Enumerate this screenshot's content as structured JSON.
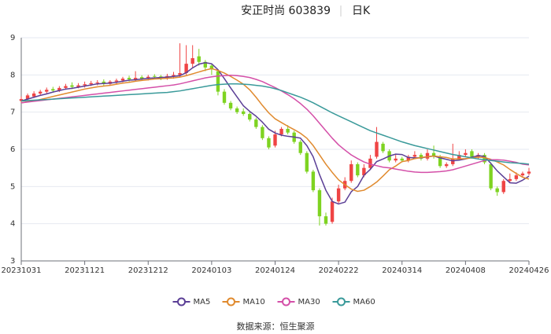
{
  "chart_data": {
    "type": "candlestick",
    "title": "安正时尚 603839",
    "period": "日K",
    "source": "数据来源：恒生聚源",
    "categories": [
      "20231031",
      null,
      null,
      null,
      null,
      null,
      null,
      null,
      null,
      null,
      "20231121",
      null,
      null,
      null,
      null,
      null,
      null,
      null,
      null,
      null,
      "20231212",
      null,
      null,
      null,
      null,
      null,
      null,
      null,
      null,
      null,
      "20240103",
      null,
      null,
      null,
      null,
      null,
      null,
      null,
      null,
      null,
      "20240124",
      null,
      null,
      null,
      null,
      null,
      null,
      null,
      null,
      null,
      "20240222",
      null,
      null,
      null,
      null,
      null,
      null,
      null,
      null,
      null,
      "20240314",
      null,
      null,
      null,
      null,
      null,
      null,
      null,
      null,
      null,
      "20240408",
      null,
      null,
      null,
      null,
      null,
      null,
      null,
      null,
      null,
      "20240426"
    ],
    "open": [
      7.3,
      7.35,
      7.42,
      7.5,
      7.55,
      7.62,
      7.58,
      7.65,
      7.72,
      7.68,
      7.72,
      7.75,
      7.78,
      7.82,
      7.76,
      7.82,
      7.85,
      7.92,
      7.88,
      7.94,
      7.9,
      7.97,
      7.96,
      7.92,
      7.97,
      8.0,
      8.05,
      8.3,
      8.5,
      8.35,
      8.25,
      8.1,
      7.55,
      7.25,
      7.1,
      7.02,
      6.95,
      6.8,
      6.6,
      6.3,
      6.1,
      6.4,
      6.55,
      6.45,
      6.2,
      5.9,
      5.4,
      4.9,
      4.2,
      4.05,
      4.6,
      4.95,
      5.15,
      5.6,
      5.3,
      5.5,
      5.8,
      6.15,
      5.95,
      5.7,
      5.75,
      5.7,
      5.8,
      5.85,
      5.75,
      5.9,
      5.8,
      5.55,
      5.6,
      5.75,
      5.85,
      5.95,
      5.8,
      5.85,
      5.6,
      4.95,
      4.85,
      5.15,
      5.2,
      5.3,
      5.35
    ],
    "high": [
      7.42,
      7.5,
      7.56,
      7.6,
      7.66,
      7.68,
      7.7,
      7.76,
      7.8,
      7.78,
      7.82,
      7.84,
      7.86,
      7.88,
      7.86,
      7.9,
      7.95,
      7.98,
      8.1,
      7.99,
      8.0,
      8.02,
      8.0,
      8.03,
      8.08,
      8.85,
      8.8,
      8.8,
      8.7,
      8.4,
      8.3,
      8.15,
      7.62,
      7.3,
      7.15,
      7.1,
      7.0,
      6.85,
      6.65,
      6.35,
      6.5,
      6.6,
      6.65,
      6.5,
      6.25,
      5.95,
      5.45,
      4.95,
      4.3,
      4.7,
      5.05,
      5.25,
      5.7,
      5.65,
      5.6,
      5.85,
      6.6,
      6.2,
      6.0,
      5.85,
      5.8,
      5.85,
      5.95,
      5.9,
      6.0,
      6.1,
      5.85,
      5.65,
      6.15,
      5.95,
      6.0,
      6.0,
      5.9,
      5.9,
      5.65,
      5.0,
      5.2,
      5.35,
      5.38,
      5.4,
      5.5
    ],
    "low": [
      7.25,
      7.3,
      7.38,
      7.45,
      7.5,
      7.52,
      7.54,
      7.6,
      7.62,
      7.64,
      7.66,
      7.7,
      7.72,
      7.7,
      7.72,
      7.76,
      7.8,
      7.82,
      7.82,
      7.84,
      7.85,
      7.88,
      7.86,
      7.87,
      7.9,
      7.95,
      8.0,
      8.2,
      8.25,
      8.1,
      8.0,
      7.45,
      7.2,
      7.05,
      6.95,
      6.9,
      6.75,
      6.55,
      6.25,
      6.0,
      6.05,
      6.35,
      6.4,
      6.15,
      5.85,
      5.35,
      4.85,
      3.95,
      3.95,
      4.0,
      4.55,
      4.9,
      5.1,
      5.25,
      5.25,
      5.45,
      5.75,
      5.9,
      5.65,
      5.65,
      5.65,
      5.65,
      5.75,
      5.7,
      5.7,
      5.75,
      5.5,
      5.5,
      5.55,
      5.7,
      5.8,
      5.75,
      5.75,
      5.6,
      4.9,
      4.75,
      4.8,
      5.1,
      5.15,
      5.25,
      5.3
    ],
    "close": [
      7.35,
      7.45,
      7.5,
      7.55,
      7.6,
      7.58,
      7.65,
      7.7,
      7.68,
      7.72,
      7.75,
      7.78,
      7.8,
      7.76,
      7.82,
      7.85,
      7.9,
      7.88,
      7.92,
      7.9,
      7.95,
      7.95,
      7.92,
      7.97,
      8.0,
      8.05,
      8.3,
      8.45,
      8.35,
      8.2,
      8.15,
      7.55,
      7.25,
      7.1,
      7.0,
      6.95,
      6.8,
      6.6,
      6.3,
      6.05,
      6.4,
      6.55,
      6.45,
      6.2,
      5.9,
      5.4,
      4.9,
      4.2,
      4.0,
      4.6,
      4.95,
      5.15,
      5.6,
      5.3,
      5.5,
      5.75,
      6.2,
      5.95,
      5.7,
      5.75,
      5.7,
      5.8,
      5.85,
      5.75,
      5.9,
      5.8,
      5.55,
      5.6,
      5.75,
      5.85,
      5.9,
      5.8,
      5.85,
      5.65,
      4.95,
      4.85,
      5.15,
      5.2,
      5.3,
      5.35,
      5.4
    ],
    "up_color": "#ef4444",
    "down_color": "#7ed321",
    "series": [
      {
        "name": "MA5",
        "color": "#5b3f96",
        "values": [
          7.3,
          7.35,
          7.4,
          7.45,
          7.49,
          7.54,
          7.58,
          7.62,
          7.64,
          7.67,
          7.7,
          7.73,
          7.76,
          7.77,
          7.78,
          7.8,
          7.83,
          7.86,
          7.87,
          7.89,
          7.91,
          7.92,
          7.93,
          7.94,
          7.96,
          7.98,
          8.06,
          8.19,
          8.29,
          8.33,
          8.3,
          8.14,
          7.9,
          7.65,
          7.41,
          7.17,
          7.02,
          6.89,
          6.73,
          6.54,
          6.44,
          6.38,
          6.35,
          6.33,
          6.3,
          6.1,
          5.8,
          5.32,
          4.9,
          4.6,
          4.53,
          4.58,
          4.86,
          5.0,
          5.3,
          5.46,
          5.67,
          5.74,
          5.82,
          5.87,
          5.86,
          5.78,
          5.77,
          5.77,
          5.8,
          5.82,
          5.77,
          5.73,
          5.69,
          5.71,
          5.74,
          5.79,
          5.83,
          5.81,
          5.62,
          5.42,
          5.26,
          5.1,
          5.09,
          5.17,
          5.28
        ]
      },
      {
        "name": "MA10",
        "color": "#e08a2e",
        "values": [
          7.25,
          7.28,
          7.3,
          7.34,
          7.38,
          7.42,
          7.46,
          7.5,
          7.54,
          7.58,
          7.62,
          7.65,
          7.68,
          7.7,
          7.72,
          7.75,
          7.78,
          7.8,
          7.83,
          7.85,
          7.87,
          7.89,
          7.9,
          7.91,
          7.92,
          7.94,
          7.98,
          8.03,
          8.08,
          8.13,
          8.17,
          8.12,
          8.05,
          7.96,
          7.86,
          7.75,
          7.6,
          7.4,
          7.18,
          6.98,
          6.82,
          6.72,
          6.62,
          6.53,
          6.43,
          6.3,
          6.1,
          5.85,
          5.6,
          5.38,
          5.18,
          5.05,
          4.93,
          4.87,
          4.9,
          5.0,
          5.12,
          5.28,
          5.45,
          5.55,
          5.67,
          5.7,
          5.75,
          5.78,
          5.8,
          5.82,
          5.8,
          5.78,
          5.74,
          5.74,
          5.75,
          5.77,
          5.79,
          5.78,
          5.73,
          5.66,
          5.58,
          5.46,
          5.35,
          5.25,
          5.2
        ]
      },
      {
        "name": "MA30",
        "color": "#d44fa8",
        "values": [
          7.25,
          7.27,
          7.29,
          7.31,
          7.33,
          7.35,
          7.37,
          7.39,
          7.41,
          7.43,
          7.45,
          7.47,
          7.49,
          7.51,
          7.53,
          7.55,
          7.57,
          7.59,
          7.61,
          7.63,
          7.65,
          7.67,
          7.69,
          7.71,
          7.73,
          7.76,
          7.8,
          7.84,
          7.88,
          7.92,
          7.95,
          7.97,
          7.98,
          7.99,
          7.98,
          7.96,
          7.93,
          7.88,
          7.82,
          7.74,
          7.66,
          7.57,
          7.47,
          7.36,
          7.23,
          7.08,
          6.9,
          6.7,
          6.5,
          6.3,
          6.12,
          5.98,
          5.85,
          5.75,
          5.66,
          5.6,
          5.56,
          5.52,
          5.5,
          5.47,
          5.44,
          5.41,
          5.39,
          5.38,
          5.38,
          5.39,
          5.4,
          5.42,
          5.45,
          5.5,
          5.55,
          5.6,
          5.65,
          5.7,
          5.72,
          5.72,
          5.71,
          5.68,
          5.65,
          5.6,
          5.58
        ]
      },
      {
        "name": "MA60",
        "color": "#3a9a9a",
        "values": [
          7.3,
          7.31,
          7.32,
          7.33,
          7.34,
          7.35,
          7.36,
          7.37,
          7.38,
          7.39,
          7.4,
          7.41,
          7.42,
          7.43,
          7.44,
          7.45,
          7.46,
          7.47,
          7.48,
          7.49,
          7.5,
          7.51,
          7.52,
          7.53,
          7.55,
          7.57,
          7.6,
          7.63,
          7.66,
          7.69,
          7.72,
          7.74,
          7.75,
          7.76,
          7.76,
          7.75,
          7.74,
          7.72,
          7.7,
          7.67,
          7.63,
          7.58,
          7.52,
          7.46,
          7.4,
          7.33,
          7.25,
          7.16,
          7.07,
          6.98,
          6.9,
          6.82,
          6.74,
          6.66,
          6.58,
          6.5,
          6.44,
          6.38,
          6.32,
          6.26,
          6.2,
          6.15,
          6.1,
          6.06,
          6.02,
          5.98,
          5.94,
          5.9,
          5.86,
          5.83,
          5.8,
          5.77,
          5.74,
          5.72,
          5.7,
          5.68,
          5.66,
          5.64,
          5.63,
          5.62,
          5.6
        ]
      }
    ],
    "ylim": [
      3,
      9
    ],
    "yticks": [
      3,
      4,
      5,
      6,
      7,
      8,
      9
    ],
    "grid": true
  }
}
